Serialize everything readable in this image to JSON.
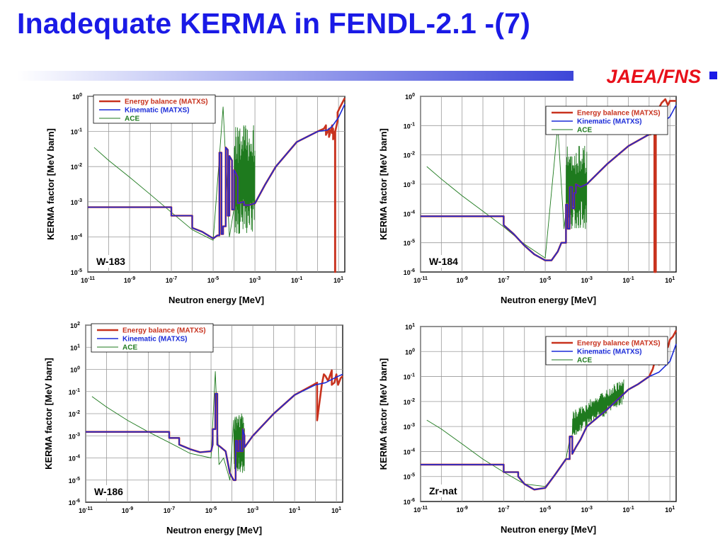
{
  "slide": {
    "title": "Inadequate KERMA in FENDL-2.1 -(7)",
    "org": "JAEA/FNS",
    "colors": {
      "title": "#1a1ae6",
      "org": "#e8101a"
    }
  },
  "chart_data": [
    {
      "type": "line",
      "panel_label": "W-183",
      "xlabel": "Neutron energy [MeV]",
      "ylabel": "KERMA factor [MeV barn]",
      "x_scale": "log",
      "y_scale": "log",
      "xlim": [
        1e-11,
        20
      ],
      "ylim": [
        1e-05,
        1
      ],
      "x_tick_exponents": [
        -11,
        -9,
        -7,
        -5,
        -3,
        -1,
        1
      ],
      "y_tick_exponents": [
        -5,
        -4,
        -3,
        -2,
        -1,
        0
      ],
      "grid": true,
      "legend_position": "top-left",
      "series": [
        {
          "name": "Energy balance (MATXS)",
          "color": "#c8321e",
          "style": "thick",
          "x": [
            1e-11,
            1e-07,
            1e-07,
            1e-06,
            1e-06,
            3e-06,
            1e-05,
            1.6e-05,
            2e-05,
            2e-05,
            2.5e-05,
            2.5e-05,
            3e-05,
            3e-05,
            4e-05,
            4e-05,
            5e-05,
            5e-05,
            6e-05,
            6e-05,
            8e-05,
            8e-05,
            0.0001,
            0.0001,
            0.00015,
            0.00015,
            0.0003,
            0.0003,
            0.0005,
            0.001,
            0.003,
            0.01,
            0.1,
            1,
            2,
            2.5,
            2.5,
            3.5,
            3.5,
            5,
            5,
            5.5,
            5.5,
            6.8,
            6.8,
            7,
            7,
            9,
            9,
            12,
            20
          ],
          "y": [
            0.0007,
            0.0007,
            0.0004,
            0.0004,
            0.00018,
            0.00014,
            9e-05,
            0.00011,
            0.00011,
            0.025,
            0.025,
            0.00012,
            0.00012,
            0.0002,
            0.0002,
            0.035,
            0.03,
            0.0004,
            0.0004,
            0.02,
            0.015,
            0.0006,
            0.0006,
            0.008,
            0.005,
            0.0009,
            0.001,
            0.0008,
            0.0008,
            0.0009,
            0.003,
            0.01,
            0.05,
            0.1,
            0.12,
            0.15,
            0.08,
            0.12,
            0.07,
            0.15,
            0.09,
            0.12,
            0.06,
            0.1,
            1e-05,
            1e-05,
            0.1,
            0.2,
            0.35,
            0.5,
            0.9
          ]
        },
        {
          "name": "Kinematic (MATXS)",
          "color": "#1a2ad8",
          "style": "normal",
          "x": [
            1e-11,
            1e-07,
            1e-07,
            1e-06,
            1e-06,
            3e-06,
            1e-05,
            1.6e-05,
            2e-05,
            2e-05,
            2.5e-05,
            2.5e-05,
            3e-05,
            3e-05,
            4e-05,
            4e-05,
            5e-05,
            5e-05,
            6e-05,
            6e-05,
            8e-05,
            8e-05,
            0.0001,
            0.0001,
            0.00015,
            0.00015,
            0.0003,
            0.0003,
            0.0005,
            0.001,
            0.003,
            0.01,
            0.1,
            1,
            3,
            5,
            10,
            20
          ],
          "y": [
            0.0007,
            0.0007,
            0.0004,
            0.0004,
            0.00018,
            0.00014,
            9e-05,
            0.00011,
            0.00011,
            0.025,
            0.025,
            0.00012,
            0.00012,
            0.0002,
            0.0002,
            0.035,
            0.03,
            0.0004,
            0.0004,
            0.02,
            0.015,
            0.0006,
            0.0006,
            0.008,
            0.005,
            0.0009,
            0.001,
            0.0008,
            0.0008,
            0.0009,
            0.003,
            0.01,
            0.05,
            0.1,
            0.11,
            0.14,
            0.25,
            0.6
          ]
        },
        {
          "name": "ACE",
          "color": "#1e7a1e",
          "style": "thin",
          "x": [
            2e-11,
            1e-10,
            1e-09,
            1e-08,
            1e-07,
            1e-06,
            1e-05,
            3e-05,
            6e-05,
            0.0001,
            0.00016,
            0.00026,
            0.0004,
            0.0006,
            0.0008,
            0.001
          ],
          "y": [
            0.035,
            0.015,
            0.005,
            0.0016,
            0.0005,
            0.00016,
            8e-05,
            0.5,
            0.0001,
            0.12,
            0.0002,
            0.1,
            0.0001,
            0.1,
            0.0002,
            0.001
          ],
          "noise": {
            "from": 0.0001,
            "to": 0.001,
            "low": 0.0001,
            "high": 0.15,
            "n": 90
          }
        }
      ]
    },
    {
      "type": "line",
      "panel_label": "W-184",
      "xlabel": "Neutron energy [MeV]",
      "ylabel": "KERMA factor [MeV barn]",
      "x_scale": "log",
      "y_scale": "log",
      "xlim": [
        1e-11,
        20
      ],
      "ylim": [
        1e-06,
        1
      ],
      "x_tick_exponents": [
        -11,
        -9,
        -7,
        -5,
        -3,
        -1,
        1
      ],
      "y_tick_exponents": [
        -6,
        -5,
        -4,
        -3,
        -2,
        -1,
        0
      ],
      "grid": true,
      "legend_position": "top-right",
      "series": [
        {
          "name": "Energy balance (MATXS)",
          "color": "#c8321e",
          "style": "thick",
          "x": [
            1e-11,
            1e-07,
            1e-07,
            3e-07,
            1e-06,
            3e-06,
            1e-05,
            2e-05,
            4e-05,
            6e-05,
            0.0001,
            0.0001,
            0.00012,
            0.00012,
            0.00015,
            0.00015,
            0.0002,
            0.0002,
            0.00025,
            0.00025,
            0.0003,
            0.0003,
            0.0005,
            0.001,
            0.01,
            0.1,
            1,
            1.2,
            1.8,
            1.8,
            2.1,
            2.1,
            2.5,
            3,
            4,
            6,
            8,
            10,
            20
          ],
          "y": [
            8e-05,
            8e-05,
            4e-05,
            2e-05,
            8e-06,
            4e-06,
            2.5e-06,
            2.5e-06,
            5e-06,
            1e-05,
            1e-05,
            0.0002,
            0.0002,
            3e-05,
            3e-05,
            0.0008,
            0.0008,
            0.00015,
            0.00015,
            0.0005,
            0.0005,
            0.001,
            0.0008,
            0.001,
            0.005,
            0.02,
            0.05,
            0.05,
            0.1,
            1e-06,
            1e-06,
            0.05,
            0.2,
            0.4,
            0.6,
            0.8,
            0.5,
            0.7,
            0.7
          ]
        },
        {
          "name": "Kinematic (MATXS)",
          "color": "#1a2ad8",
          "style": "normal",
          "x": [
            1e-11,
            1e-07,
            1e-07,
            3e-07,
            1e-06,
            3e-06,
            1e-05,
            2e-05,
            4e-05,
            6e-05,
            0.0001,
            0.0001,
            0.00012,
            0.00012,
            0.00015,
            0.00015,
            0.0002,
            0.0002,
            0.00025,
            0.00025,
            0.0003,
            0.0003,
            0.0005,
            0.001,
            0.01,
            0.1,
            1,
            3,
            10,
            20
          ],
          "y": [
            8e-05,
            8e-05,
            4e-05,
            2e-05,
            8e-06,
            4e-06,
            2.5e-06,
            2.5e-06,
            5e-06,
            1e-05,
            1e-05,
            0.0002,
            0.0002,
            3e-05,
            3e-05,
            0.0008,
            0.0008,
            0.00015,
            0.00015,
            0.0005,
            0.0005,
            0.001,
            0.0008,
            0.001,
            0.005,
            0.02,
            0.05,
            0.1,
            0.2,
            0.5
          ]
        },
        {
          "name": "ACE",
          "color": "#1e7a1e",
          "style": "thin",
          "x": [
            2e-11,
            1e-10,
            1e-09,
            1e-08,
            1e-07,
            1e-06,
            1e-05,
            4e-05,
            8e-05,
            0.00012,
            0.0002,
            0.0003,
            0.0005,
            0.0008,
            0.001
          ],
          "y": [
            0.004,
            0.0015,
            0.0004,
            0.00012,
            3.5e-05,
            9e-06,
            3e-06,
            0.1,
            3e-05,
            0.02,
            3e-05,
            0.01,
            5e-05,
            0.01,
            0.001
          ],
          "noise": {
            "from": 0.0001,
            "to": 0.001,
            "low": 3e-05,
            "high": 0.02,
            "n": 80
          }
        }
      ]
    },
    {
      "type": "line",
      "panel_label": "W-186",
      "xlabel": "Neutron energy [MeV]",
      "ylabel": "KERMA factor [MeV barn]",
      "x_scale": "log",
      "y_scale": "log",
      "xlim": [
        1e-11,
        20
      ],
      "ylim": [
        1e-06,
        100
      ],
      "x_tick_exponents": [
        -11,
        -9,
        -7,
        -5,
        -3,
        -1,
        1
      ],
      "y_tick_exponents": [
        -6,
        -5,
        -4,
        -3,
        -2,
        -1,
        0,
        1,
        2
      ],
      "grid": true,
      "legend_position": "top-left",
      "series": [
        {
          "name": "Energy balance (MATXS)",
          "color": "#c8321e",
          "style": "thick",
          "x": [
            1e-11,
            1e-07,
            1e-07,
            3e-07,
            3e-07,
            1e-06,
            3e-06,
            1e-05,
            1.2e-05,
            1.2e-05,
            1.6e-05,
            1.6e-05,
            2e-05,
            2e-05,
            3e-05,
            5e-05,
            8e-05,
            0.00012,
            0.00015,
            0.00015,
            0.00018,
            0.00018,
            0.00022,
            0.00022,
            0.00026,
            0.00026,
            0.00033,
            0.00033,
            0.0004,
            0.0004,
            0.001,
            0.01,
            0.1,
            0.8,
            1.2,
            1.2,
            2,
            2.5,
            3,
            4,
            6,
            6,
            8,
            10,
            12,
            16,
            20
          ],
          "y": [
            0.0015,
            0.0015,
            0.0008,
            0.0008,
            0.0004,
            0.00025,
            0.00018,
            0.0002,
            0.0004,
            0.002,
            0.002,
            0.08,
            0.08,
            0.0004,
            0.0003,
            0.0002,
            2e-05,
            1e-05,
            1e-05,
            0.0006,
            0.0006,
            0.0002,
            0.0002,
            0.0006,
            0.0006,
            0.0002,
            0.0002,
            0.002,
            0.001,
            0.0003,
            0.001,
            0.01,
            0.07,
            0.2,
            0.25,
            0.005,
            0.2,
            0.6,
            0.5,
            0.3,
            0.9,
            0.2,
            0.25,
            0.6,
            0.2,
            0.4,
            0.5
          ]
        },
        {
          "name": "Kinematic (MATXS)",
          "color": "#1a2ad8",
          "style": "normal",
          "x": [
            1e-11,
            1e-07,
            1e-07,
            3e-07,
            3e-07,
            1e-06,
            3e-06,
            1e-05,
            1.2e-05,
            1.2e-05,
            1.6e-05,
            1.6e-05,
            2e-05,
            2e-05,
            3e-05,
            5e-05,
            8e-05,
            0.00012,
            0.00015,
            0.00015,
            0.00018,
            0.00018,
            0.00022,
            0.00022,
            0.00026,
            0.00026,
            0.00033,
            0.00033,
            0.0004,
            0.0004,
            0.001,
            0.01,
            0.1,
            1,
            3,
            10,
            20
          ],
          "y": [
            0.0015,
            0.0015,
            0.0008,
            0.0008,
            0.0004,
            0.00025,
            0.00018,
            0.0002,
            0.0004,
            0.002,
            0.002,
            0.08,
            0.08,
            0.0004,
            0.0003,
            0.0002,
            2e-05,
            1e-05,
            1e-05,
            0.0006,
            0.0006,
            0.0002,
            0.0002,
            0.0006,
            0.0006,
            0.0002,
            0.0002,
            0.002,
            0.001,
            0.0003,
            0.001,
            0.01,
            0.07,
            0.2,
            0.25,
            0.45,
            0.6
          ]
        },
        {
          "name": "ACE",
          "color": "#1e7a1e",
          "style": "thin",
          "x": [
            2e-11,
            1e-10,
            1e-09,
            1e-08,
            1e-07,
            1e-06,
            1e-05,
            1.6e-05,
            2.4e-05,
            4e-05,
            8e-05,
            0.00012,
            0.0002,
            0.0004
          ],
          "y": [
            0.06,
            0.02,
            0.005,
            0.0015,
            0.0005,
            0.00016,
            0.0001,
            0.8,
            5e-05,
            0.0001,
            1e-05,
            0.005,
            2e-05,
            0.001
          ],
          "noise": {
            "from": 0.00013,
            "to": 0.0004,
            "low": 2e-05,
            "high": 0.01,
            "n": 70
          }
        }
      ]
    },
    {
      "type": "line",
      "panel_label": "Zr-nat",
      "xlabel": "Neutron energy [MeV]",
      "ylabel": "KERMA factor [MeV barn]",
      "x_scale": "log",
      "y_scale": "log",
      "xlim": [
        1e-11,
        20
      ],
      "ylim": [
        1e-06,
        10
      ],
      "x_tick_exponents": [
        -11,
        -9,
        -7,
        -5,
        -3,
        -1,
        1
      ],
      "y_tick_exponents": [
        -6,
        -5,
        -4,
        -3,
        -2,
        -1,
        0,
        1
      ],
      "grid": true,
      "legend_position": "top-right",
      "series": [
        {
          "name": "Energy balance (MATXS)",
          "color": "#c8321e",
          "style": "thick",
          "x": [
            1e-11,
            1e-07,
            1e-07,
            5e-07,
            5e-07,
            1e-06,
            3e-06,
            1e-05,
            3e-05,
            0.0001,
            0.00015,
            0.00015,
            0.0002,
            0.0002,
            0.0003,
            0.0005,
            0.001,
            0.01,
            0.1,
            0.3,
            1,
            1.5,
            2,
            3,
            4,
            5,
            6,
            8,
            10,
            14,
            20
          ],
          "y": [
            3e-05,
            3e-05,
            1.5e-05,
            1.5e-05,
            1e-05,
            5e-06,
            3e-06,
            3.5e-06,
            1.2e-05,
            5e-05,
            5e-05,
            0.0004,
            0.0004,
            8e-05,
            0.00015,
            0.0003,
            0.001,
            0.005,
            0.03,
            0.05,
            0.1,
            0.2,
            0.5,
            0.3,
            1.2,
            0.8,
            2,
            1.5,
            3,
            4,
            7
          ]
        },
        {
          "name": "Kinematic (MATXS)",
          "color": "#1a2ad8",
          "style": "normal",
          "x": [
            1e-11,
            1e-07,
            1e-07,
            5e-07,
            5e-07,
            1e-06,
            3e-06,
            1e-05,
            3e-05,
            0.0001,
            0.00015,
            0.00015,
            0.0002,
            0.0002,
            0.0003,
            0.0005,
            0.001,
            0.01,
            0.1,
            0.3,
            1,
            3,
            10,
            20
          ],
          "y": [
            3e-05,
            3e-05,
            1.5e-05,
            1.5e-05,
            1e-05,
            5e-06,
            3e-06,
            3.5e-06,
            1.2e-05,
            5e-05,
            5e-05,
            0.0004,
            0.0004,
            8e-05,
            0.00015,
            0.0003,
            0.001,
            0.005,
            0.03,
            0.05,
            0.1,
            0.15,
            0.4,
            2
          ]
        },
        {
          "name": "ACE",
          "color": "#1e7a1e",
          "style": "thin",
          "x": [
            2e-11,
            1e-10,
            1e-09,
            1e-08,
            1e-07,
            1e-06,
            1e-05,
            3e-05,
            0.0001,
            0.00015,
            0.0002
          ],
          "y": [
            0.0018,
            0.0008,
            0.0002,
            5e-05,
            1.5e-05,
            5e-06,
            4e-06,
            1.2e-05,
            5e-05,
            0.0003,
            0.0001
          ],
          "noise": {
            "from": 0.0002,
            "to": 0.06,
            "low": "trend",
            "high": "trend",
            "n": 140
          }
        }
      ]
    }
  ]
}
